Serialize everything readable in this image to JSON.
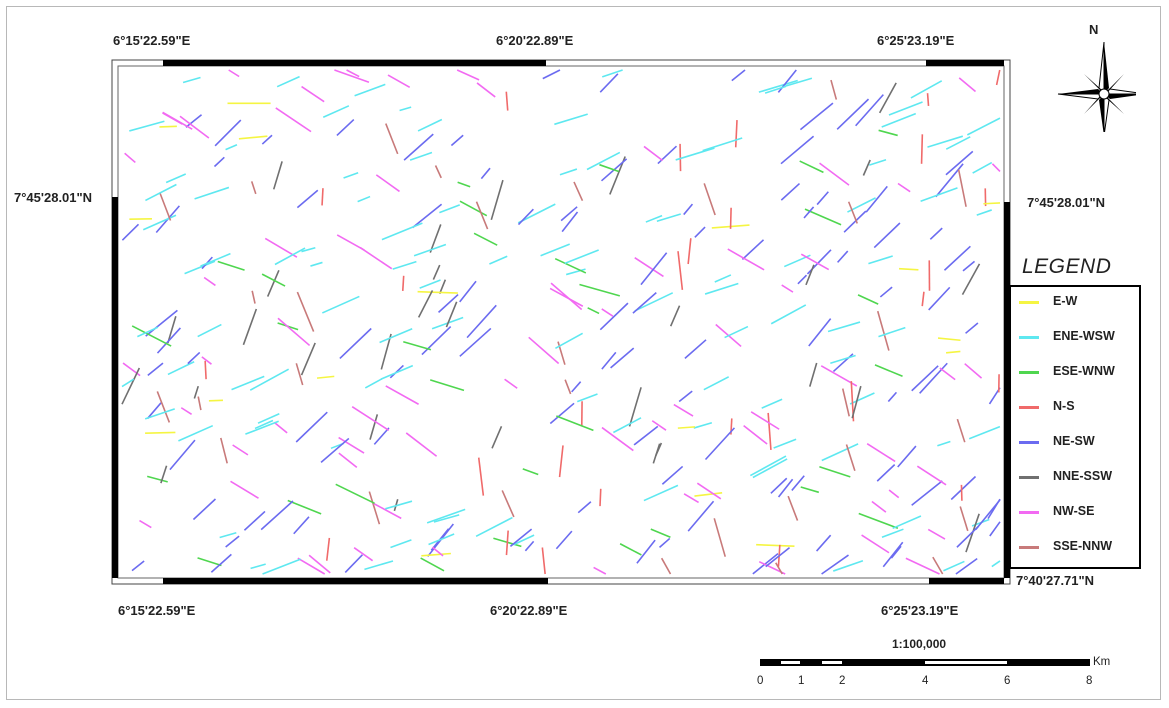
{
  "map": {
    "top_longitudes": [
      "6°15'22.59\"E",
      "6°20'22.89\"E",
      "6°25'23.19\"E"
    ],
    "bottom_longitudes": [
      "6°15'22.59\"E",
      "6°20'22.89\"E",
      "6°25'23.19\"E"
    ],
    "left_latitude": "7°45'28.01\"N",
    "right_latitude": "7°45'28.01\"N",
    "right_bottom_latitude": "7°40'27.71\"N"
  },
  "north_arrow": {
    "label": "N",
    "icon": "compass-rose-icon"
  },
  "legend": {
    "title": "LEGEND",
    "items": [
      {
        "label": "E-W",
        "color": "#f5f542"
      },
      {
        "label": "ENE-WSW",
        "color": "#5ee8f0"
      },
      {
        "label": "ESE-WNW",
        "color": "#4fd64f"
      },
      {
        "label": "N-S",
        "color": "#f06a6a"
      },
      {
        "label": "NE-SW",
        "color": "#6b6bf0"
      },
      {
        "label": "NNE-SSW",
        "color": "#707070"
      },
      {
        "label": "NW-SE",
        "color": "#f26af2"
      },
      {
        "label": "SSE-NNW",
        "color": "#c87a7a"
      }
    ]
  },
  "scale_bar": {
    "ratio": "1:100,000",
    "unit": "Km",
    "ticks": [
      "0",
      "1",
      "2",
      "4",
      "6",
      "8"
    ]
  }
}
